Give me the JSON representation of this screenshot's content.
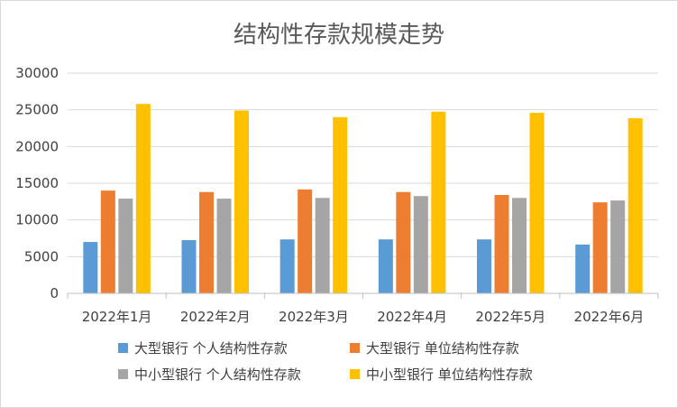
{
  "chart_data": {
    "type": "bar",
    "title": "结构性存款规模走势",
    "categories": [
      "2022年1月",
      "2022年2月",
      "2022年3月",
      "2022年4月",
      "2022年5月",
      "2022年6月"
    ],
    "y_ticks": [
      "0",
      "5000",
      "10000",
      "15000",
      "20000",
      "25000",
      "30000"
    ],
    "ylim": [
      0,
      30000
    ],
    "grid": true,
    "legend_position": "bottom",
    "series": [
      {
        "name": "大型银行 个人结构性存款",
        "color": "#5b9bd5",
        "values": [
          7000,
          7250,
          7350,
          7350,
          7350,
          6650
        ]
      },
      {
        "name": "大型银行 单位结构性存款",
        "color": "#ed7d31",
        "values": [
          14000,
          13800,
          14150,
          13800,
          13400,
          12400
        ]
      },
      {
        "name": "中小型银行 个人结构性存款",
        "color": "#a5a5a5",
        "values": [
          12900,
          12900,
          13000,
          13250,
          13000,
          12650
        ]
      },
      {
        "name": "中小型银行 单位结构性存款",
        "color": "#ffc000",
        "values": [
          25800,
          24900,
          24000,
          24750,
          24600,
          23850
        ]
      }
    ]
  }
}
